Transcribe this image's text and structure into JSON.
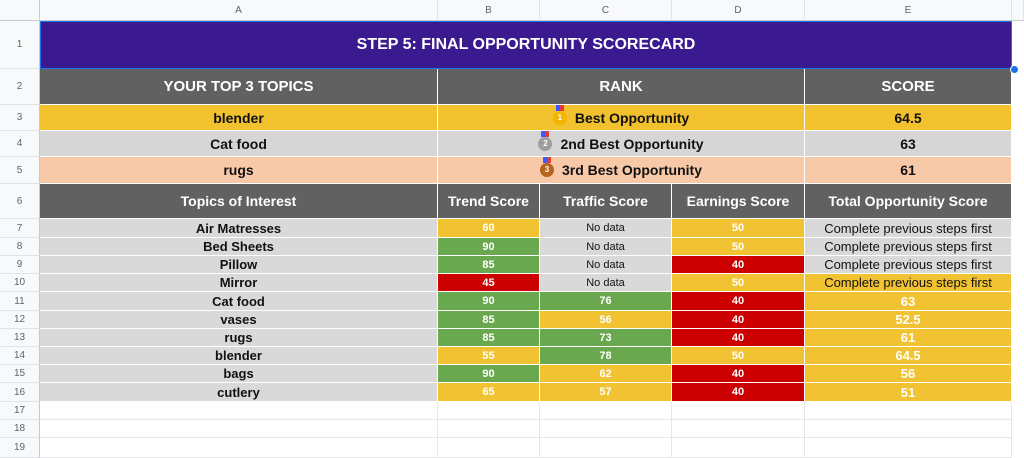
{
  "columns": [
    "A",
    "B",
    "C",
    "D",
    "E"
  ],
  "rows": [
    "1",
    "2",
    "3",
    "4",
    "5",
    "6",
    "7",
    "8",
    "9",
    "10",
    "11",
    "12",
    "13",
    "14",
    "15",
    "16",
    "17",
    "18",
    "19"
  ],
  "title": "STEP 5: FINAL OPPORTUNITY SCORECARD",
  "top_header": {
    "topics": "YOUR TOP 3 TOPICS",
    "rank": "RANK",
    "score": "SCORE"
  },
  "top3": [
    {
      "topic": "blender",
      "rank": "Best Opportunity",
      "medal": "1",
      "score": "64.5"
    },
    {
      "topic": "Cat food",
      "rank": "2nd Best Opportunity",
      "medal": "2",
      "score": "63"
    },
    {
      "topic": "rugs",
      "rank": "3rd Best Opportunity",
      "medal": "3",
      "score": "61"
    }
  ],
  "table_header": {
    "topics": "Topics of Interest",
    "trend": "Trend Score",
    "traffic": "Traffic Score",
    "earnings": "Earnings Score",
    "total": "Total Opportunity Score"
  },
  "table": [
    {
      "topic": "Air Matresses",
      "trend": "60",
      "traffic": "No data",
      "earnings": "50",
      "total": "Complete previous steps first"
    },
    {
      "topic": "Bed Sheets",
      "trend": "90",
      "traffic": "No data",
      "earnings": "50",
      "total": "Complete previous steps first"
    },
    {
      "topic": "Pillow",
      "trend": "85",
      "traffic": "No data",
      "earnings": "40",
      "total": "Complete previous steps first"
    },
    {
      "topic": "Mirror",
      "trend": "45",
      "traffic": "No data",
      "earnings": "50",
      "total": "Complete previous steps first"
    },
    {
      "topic": "Cat food",
      "trend": "90",
      "traffic": "76",
      "earnings": "40",
      "total": "63"
    },
    {
      "topic": "vases",
      "trend": "85",
      "traffic": "56",
      "earnings": "40",
      "total": "52.5"
    },
    {
      "topic": "rugs",
      "trend": "85",
      "traffic": "73",
      "earnings": "40",
      "total": "61"
    },
    {
      "topic": "blender",
      "trend": "55",
      "traffic": "78",
      "earnings": "50",
      "total": "64.5"
    },
    {
      "topic": "bags",
      "trend": "90",
      "traffic": "62",
      "earnings": "40",
      "total": "56"
    },
    {
      "topic": "cutlery",
      "trend": "65",
      "traffic": "57",
      "earnings": "40",
      "total": "51"
    }
  ],
  "cell_colors": {
    "trend": [
      "yellow",
      "green",
      "green",
      "red",
      "green",
      "green",
      "green",
      "yellow",
      "green",
      "yellow"
    ],
    "traffic": [
      "gray",
      "gray",
      "gray",
      "gray",
      "green",
      "yellow",
      "green",
      "green",
      "yellow",
      "yellow"
    ],
    "earnings": [
      "yellow",
      "yellow",
      "red",
      "yellow",
      "red",
      "red",
      "red",
      "yellow",
      "red",
      "red"
    ],
    "total": [
      "gray",
      "gray",
      "gray",
      "yellow",
      "yellow",
      "yellow",
      "yellow",
      "yellow",
      "yellow",
      "yellow"
    ]
  },
  "colors": {
    "title_bg": "#3b1a8f",
    "header_bg": "#616161",
    "green": "#6aa84f",
    "yellow": "#f1c232",
    "red": "#cc0000",
    "gray": "#d9d9d9"
  }
}
